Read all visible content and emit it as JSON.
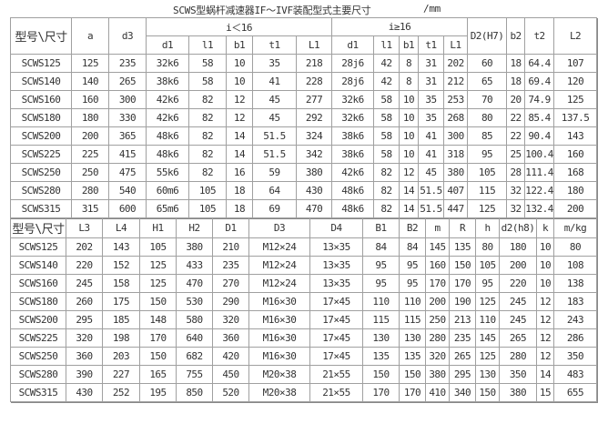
{
  "title": {
    "text": "SCWS型蜗杆减速器IF～IVF装配型式主要尺寸",
    "unit": "/mm"
  },
  "table1": {
    "model_header": "型号\\尺寸",
    "a": "a",
    "d3": "d3",
    "group_lt16": "i＜16",
    "group_ge16": "i≥16",
    "D2": "D2(H7)",
    "b2": "b2",
    "t2": "t2",
    "L2": "L2",
    "sub_lt16": [
      "d1",
      "l1",
      "b1",
      "t1",
      "L1"
    ],
    "sub_ge16": [
      "d1",
      "l1",
      "b1",
      "t1",
      "L1"
    ],
    "rows": [
      [
        "SCWS125",
        "125",
        "235",
        "32k6",
        "58",
        "10",
        "35",
        "218",
        "28j6",
        "42",
        "8",
        "31",
        "202",
        "60",
        "18",
        "64.4",
        "107"
      ],
      [
        "SCWS140",
        "140",
        "265",
        "38k6",
        "58",
        "10",
        "41",
        "228",
        "28j6",
        "42",
        "8",
        "31",
        "212",
        "65",
        "18",
        "69.4",
        "120"
      ],
      [
        "SCWS160",
        "160",
        "300",
        "42k6",
        "82",
        "12",
        "45",
        "277",
        "32k6",
        "58",
        "10",
        "35",
        "253",
        "70",
        "20",
        "74.9",
        "125"
      ],
      [
        "SCWS180",
        "180",
        "330",
        "42k6",
        "82",
        "12",
        "45",
        "292",
        "32k6",
        "58",
        "10",
        "35",
        "268",
        "80",
        "22",
        "85.4",
        "137.5"
      ],
      [
        "SCWS200",
        "200",
        "365",
        "48k6",
        "82",
        "14",
        "51.5",
        "324",
        "38k6",
        "58",
        "10",
        "41",
        "300",
        "85",
        "22",
        "90.4",
        "143"
      ],
      [
        "SCWS225",
        "225",
        "415",
        "48k6",
        "82",
        "14",
        "51.5",
        "342",
        "38k6",
        "58",
        "10",
        "41",
        "318",
        "95",
        "25",
        "100.4",
        "160"
      ],
      [
        "SCWS250",
        "250",
        "475",
        "55k6",
        "82",
        "16",
        "59",
        "380",
        "42k6",
        "82",
        "12",
        "45",
        "380",
        "105",
        "28",
        "111.4",
        "168"
      ],
      [
        "SCWS280",
        "280",
        "540",
        "60m6",
        "105",
        "18",
        "64",
        "430",
        "48k6",
        "82",
        "14",
        "51.5",
        "407",
        "115",
        "32",
        "122.4",
        "180"
      ],
      [
        "SCWS315",
        "315",
        "600",
        "65m6",
        "105",
        "18",
        "69",
        "470",
        "48k6",
        "82",
        "14",
        "51.5",
        "447",
        "125",
        "32",
        "132.4",
        "200"
      ]
    ]
  },
  "table2": {
    "headers": [
      "型号\\尺寸",
      "L3",
      "L4",
      "H1",
      "H2",
      "D1",
      "D3",
      "D4",
      "B1",
      "B2",
      "m",
      "R",
      "h",
      "d2(h8)",
      "k",
      "m/kg"
    ],
    "rows": [
      [
        "SCWS125",
        "202",
        "143",
        "105",
        "380",
        "210",
        "M12×24",
        "13×35",
        "84",
        "84",
        "145",
        "135",
        "80",
        "180",
        "10",
        "80"
      ],
      [
        "SCWS140",
        "220",
        "152",
        "125",
        "433",
        "235",
        "M12×24",
        "13×35",
        "95",
        "95",
        "160",
        "150",
        "105",
        "200",
        "10",
        "108"
      ],
      [
        "SCWS160",
        "245",
        "158",
        "125",
        "470",
        "270",
        "M12×24",
        "13×35",
        "95",
        "95",
        "170",
        "170",
        "95",
        "220",
        "10",
        "138"
      ],
      [
        "SCWS180",
        "260",
        "175",
        "150",
        "530",
        "290",
        "M16×30",
        "17×45",
        "110",
        "110",
        "200",
        "190",
        "125",
        "245",
        "12",
        "183"
      ],
      [
        "SCWS200",
        "295",
        "185",
        "148",
        "580",
        "320",
        "M16×30",
        "17×45",
        "115",
        "115",
        "250",
        "213",
        "110",
        "245",
        "12",
        "243"
      ],
      [
        "SCWS225",
        "320",
        "198",
        "170",
        "640",
        "360",
        "M16×30",
        "17×45",
        "130",
        "130",
        "280",
        "235",
        "145",
        "265",
        "12",
        "286"
      ],
      [
        "SCWS250",
        "360",
        "203",
        "150",
        "682",
        "420",
        "M16×30",
        "17×45",
        "135",
        "135",
        "320",
        "265",
        "125",
        "280",
        "12",
        "350"
      ],
      [
        "SCWS280",
        "390",
        "227",
        "165",
        "755",
        "450",
        "M20×38",
        "21×55",
        "150",
        "150",
        "380",
        "295",
        "130",
        "350",
        "14",
        "483"
      ],
      [
        "SCWS315",
        "430",
        "252",
        "195",
        "850",
        "520",
        "M20×38",
        "21×55",
        "170",
        "170",
        "410",
        "340",
        "150",
        "380",
        "15",
        "655"
      ]
    ]
  }
}
